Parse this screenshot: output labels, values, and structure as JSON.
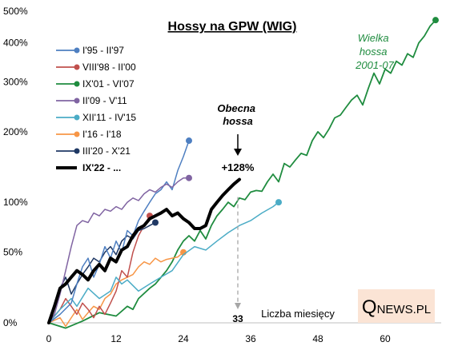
{
  "chart_data": {
    "type": "line",
    "title": "Hossy na GPW (WIG)",
    "xlabel": "Liczba miesięcy",
    "ylabel": "",
    "y_scale": "log(1+return)",
    "xlim": [
      0,
      70
    ],
    "ylim_pct": [
      0,
      500
    ],
    "x_ticks": [
      0,
      12,
      24,
      36,
      48,
      60
    ],
    "y_ticks": [
      {
        "value": 0,
        "label": "0%"
      },
      {
        "value": 50,
        "label": "50%"
      },
      {
        "value": 100,
        "label": "100%"
      },
      {
        "value": 200,
        "label": "200%"
      },
      {
        "value": 300,
        "label": "300%"
      },
      {
        "value": 400,
        "label": "400%"
      },
      {
        "value": 500,
        "label": "500%"
      }
    ],
    "legend_placement": "top-left",
    "series": [
      {
        "name": "I'95 - II'97",
        "color": "#4e7fc1",
        "width": 1.5,
        "marker": true,
        "points": [
          [
            0,
            0
          ],
          [
            2,
            5
          ],
          [
            4,
            12
          ],
          [
            5,
            25
          ],
          [
            6,
            38
          ],
          [
            7,
            45
          ],
          [
            8,
            30
          ],
          [
            9,
            40
          ],
          [
            10,
            55
          ],
          [
            11,
            45
          ],
          [
            12,
            60
          ],
          [
            13,
            50
          ],
          [
            14,
            70
          ],
          [
            15,
            65
          ],
          [
            16,
            80
          ],
          [
            17,
            90
          ],
          [
            18,
            100
          ],
          [
            19,
            110
          ],
          [
            20,
            115
          ],
          [
            21,
            125
          ],
          [
            22,
            115
          ],
          [
            23,
            140
          ],
          [
            24,
            160
          ],
          [
            25,
            185
          ]
        ]
      },
      {
        "name": "VIII'98 - II'00",
        "color": "#c0504d",
        "width": 1.5,
        "marker": true,
        "points": [
          [
            0,
            0
          ],
          [
            2,
            8
          ],
          [
            3,
            15
          ],
          [
            4,
            10
          ],
          [
            5,
            5
          ],
          [
            6,
            12
          ],
          [
            7,
            8
          ],
          [
            8,
            3
          ],
          [
            9,
            10
          ],
          [
            10,
            5
          ],
          [
            11,
            12
          ],
          [
            12,
            20
          ],
          [
            13,
            35
          ],
          [
            14,
            30
          ],
          [
            15,
            50
          ],
          [
            16,
            65
          ],
          [
            17,
            75
          ],
          [
            18,
            85
          ]
        ]
      },
      {
        "name": "IX'01 - VI'07",
        "color": "#1f8c3f",
        "width": 1.8,
        "marker": true,
        "points": [
          [
            0,
            0
          ],
          [
            3,
            -3
          ],
          [
            6,
            1
          ],
          [
            9,
            6
          ],
          [
            12,
            4
          ],
          [
            14,
            10
          ],
          [
            15,
            8
          ],
          [
            16,
            15
          ],
          [
            18,
            22
          ],
          [
            19,
            25
          ],
          [
            21,
            35
          ],
          [
            22,
            42
          ],
          [
            23,
            52
          ],
          [
            24,
            60
          ],
          [
            25,
            65
          ],
          [
            26,
            60
          ],
          [
            27,
            70
          ],
          [
            28,
            62
          ],
          [
            29,
            75
          ],
          [
            30,
            85
          ],
          [
            31,
            92
          ],
          [
            32,
            100
          ],
          [
            33,
            95
          ],
          [
            34,
            105
          ],
          [
            35,
            103
          ],
          [
            36,
            112
          ],
          [
            37,
            114
          ],
          [
            38,
            113
          ],
          [
            39,
            125
          ],
          [
            40,
            135
          ],
          [
            41,
            125
          ],
          [
            42,
            150
          ],
          [
            43,
            145
          ],
          [
            44,
            155
          ],
          [
            45,
            165
          ],
          [
            46,
            162
          ],
          [
            47,
            185
          ],
          [
            48,
            200
          ],
          [
            49,
            190
          ],
          [
            50,
            205
          ],
          [
            51,
            225
          ],
          [
            52,
            230
          ],
          [
            53,
            245
          ],
          [
            54,
            260
          ],
          [
            55,
            270
          ],
          [
            56,
            250
          ],
          [
            57,
            285
          ],
          [
            58,
            320
          ],
          [
            59,
            295
          ],
          [
            60,
            330
          ],
          [
            61,
            320
          ],
          [
            62,
            350
          ],
          [
            63,
            340
          ],
          [
            64,
            370
          ],
          [
            65,
            360
          ],
          [
            66,
            400
          ],
          [
            67,
            420
          ],
          [
            68,
            450
          ],
          [
            69,
            470
          ]
        ]
      },
      {
        "name": "II'09 - V'11",
        "color": "#8064a2",
        "width": 1.5,
        "marker": true,
        "points": [
          [
            0,
            0
          ],
          [
            1,
            5
          ],
          [
            2,
            18
          ],
          [
            3,
            35
          ],
          [
            4,
            55
          ],
          [
            5,
            75
          ],
          [
            6,
            80
          ],
          [
            7,
            78
          ],
          [
            8,
            88
          ],
          [
            9,
            85
          ],
          [
            10,
            92
          ],
          [
            11,
            90
          ],
          [
            12,
            95
          ],
          [
            13,
            92
          ],
          [
            14,
            100
          ],
          [
            15,
            105
          ],
          [
            16,
            102
          ],
          [
            17,
            110
          ],
          [
            18,
            115
          ],
          [
            19,
            112
          ],
          [
            20,
            118
          ],
          [
            21,
            122
          ],
          [
            22,
            118
          ],
          [
            23,
            125
          ],
          [
            24,
            130
          ],
          [
            25,
            130
          ]
        ]
      },
      {
        "name": "XII'11 - IV'15",
        "color": "#4bacc6",
        "width": 1.5,
        "marker": true,
        "points": [
          [
            0,
            0
          ],
          [
            2,
            8
          ],
          [
            4,
            15
          ],
          [
            5,
            10
          ],
          [
            7,
            22
          ],
          [
            9,
            15
          ],
          [
            11,
            20
          ],
          [
            12,
            30
          ],
          [
            13,
            25
          ],
          [
            14,
            28
          ],
          [
            16,
            20
          ],
          [
            18,
            25
          ],
          [
            20,
            30
          ],
          [
            22,
            35
          ],
          [
            24,
            48
          ],
          [
            26,
            55
          ],
          [
            28,
            52
          ],
          [
            30,
            60
          ],
          [
            32,
            68
          ],
          [
            34,
            75
          ],
          [
            36,
            80
          ],
          [
            38,
            88
          ],
          [
            40,
            95
          ],
          [
            41,
            100
          ]
        ]
      },
      {
        "name": "I'16 - I'18",
        "color": "#f79646",
        "width": 1.5,
        "marker": true,
        "points": [
          [
            0,
            0
          ],
          [
            2,
            3
          ],
          [
            3,
            -2
          ],
          [
            4,
            3
          ],
          [
            5,
            8
          ],
          [
            6,
            2
          ],
          [
            7,
            6
          ],
          [
            8,
            10
          ],
          [
            9,
            8
          ],
          [
            10,
            15
          ],
          [
            11,
            18
          ],
          [
            12,
            25
          ],
          [
            13,
            28
          ],
          [
            14,
            30
          ],
          [
            15,
            32
          ],
          [
            16,
            38
          ],
          [
            17,
            42
          ],
          [
            18,
            40
          ],
          [
            19,
            45
          ],
          [
            20,
            42
          ],
          [
            21,
            44
          ],
          [
            22,
            45
          ],
          [
            23,
            46
          ],
          [
            24,
            50
          ]
        ]
      },
      {
        "name": "III'20 - X'21",
        "color": "#1f3864",
        "width": 1.5,
        "marker": true,
        "points": [
          [
            0,
            0
          ],
          [
            1,
            10
          ],
          [
            2,
            22
          ],
          [
            3,
            30
          ],
          [
            4,
            18
          ],
          [
            5,
            25
          ],
          [
            6,
            32
          ],
          [
            7,
            38
          ],
          [
            8,
            45
          ],
          [
            9,
            42
          ],
          [
            10,
            50
          ],
          [
            11,
            55
          ],
          [
            12,
            48
          ],
          [
            13,
            60
          ],
          [
            14,
            65
          ],
          [
            15,
            62
          ],
          [
            16,
            70
          ],
          [
            17,
            72
          ],
          [
            18,
            75
          ],
          [
            19,
            78
          ]
        ]
      },
      {
        "name": "IX'22 - ...",
        "color": "#000000",
        "width": 4,
        "marker": false,
        "points": [
          [
            0,
            0
          ],
          [
            1,
            10
          ],
          [
            2,
            22
          ],
          [
            3,
            25
          ],
          [
            4,
            30
          ],
          [
            5,
            35
          ],
          [
            6,
            32
          ],
          [
            7,
            28
          ],
          [
            8,
            35
          ],
          [
            9,
            40
          ],
          [
            10,
            35
          ],
          [
            11,
            45
          ],
          [
            12,
            42
          ],
          [
            13,
            52
          ],
          [
            14,
            55
          ],
          [
            15,
            65
          ],
          [
            16,
            72
          ],
          [
            17,
            75
          ],
          [
            18,
            82
          ],
          [
            19,
            85
          ],
          [
            20,
            88
          ],
          [
            21,
            92
          ],
          [
            22,
            85
          ],
          [
            23,
            88
          ],
          [
            24,
            82
          ],
          [
            25,
            78
          ],
          [
            26,
            72
          ],
          [
            27,
            72
          ],
          [
            28,
            75
          ],
          [
            29,
            92
          ],
          [
            30,
            100
          ],
          [
            31,
            108
          ],
          [
            32,
            115
          ],
          [
            33,
            122
          ],
          [
            34,
            128
          ]
        ]
      }
    ],
    "annotations": {
      "current": "Obecna\nhossa",
      "current_value": "+128%",
      "marker_month": "33",
      "great": "Wielka\nhossa\n2001-07"
    },
    "branding": "QNEWS.PL"
  }
}
